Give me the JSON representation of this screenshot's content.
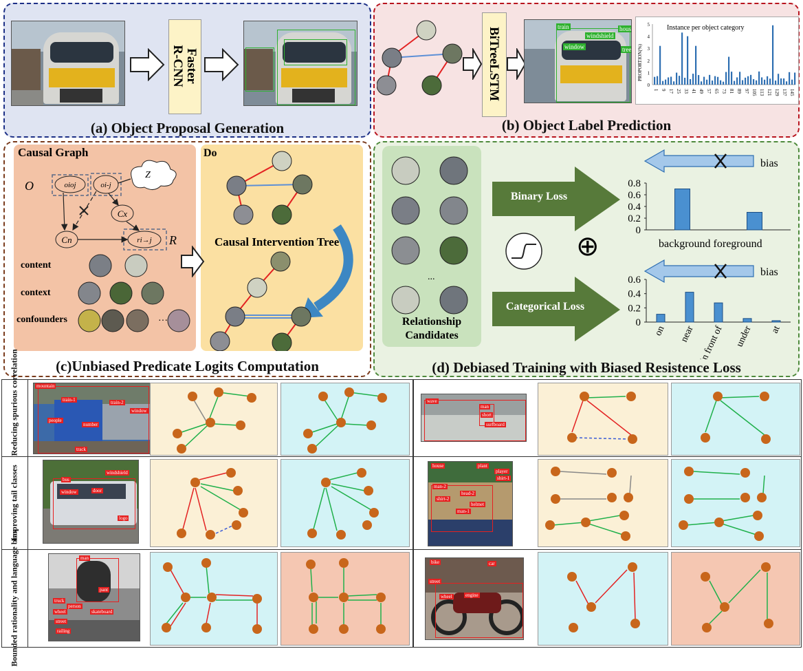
{
  "panel_a": {
    "caption": "(a) Object Proposal Generation",
    "box_label": "Faster R-CNN",
    "box_line1": "Faster",
    "box_line2": "R-CNN"
  },
  "panel_b": {
    "caption": "(b) Object Label Prediction",
    "box_label": "BiTreeLSTM",
    "det_labels": [
      "train",
      "windshield",
      "window",
      "house",
      "tree"
    ],
    "hist_title": "Instance per object category",
    "hist_ylabel": "PROPORTION(%)",
    "hist_yticks": [
      "0",
      "1",
      "2",
      "3",
      "4",
      "5"
    ],
    "hist_xticks": [
      "1",
      "9",
      "17",
      "25",
      "33",
      "41",
      "49",
      "57",
      "65",
      "73",
      "81",
      "89",
      "97",
      "105",
      "113",
      "121",
      "129",
      "137",
      "145"
    ]
  },
  "panel_c": {
    "caption": "(c)Unbiased Predicate Logits Computation",
    "graph_title": "Causal Graph",
    "do_label": "Do",
    "tree_label": "Causal Intervention Tree",
    "nodes": {
      "O": "O",
      "oioj": "oioj",
      "oij": "oi-j",
      "Z": "Z",
      "Cx": "Cx",
      "Cn": "Cn",
      "r": "ri→j",
      "R": "R"
    },
    "rows": [
      "content",
      "context",
      "confounders"
    ],
    "ellipsis": "···"
  },
  "panel_d": {
    "caption": "(d) Debiased Training with Biased Resistence Loss",
    "candidates_label_1": "Relationship",
    "candidates_label_2": "Candidates",
    "candidates_ellipsis": "...",
    "binary_loss": "Binary Loss",
    "categorical_loss": "Categorical Loss",
    "bias": "bias",
    "oplus": "⊕"
  },
  "chart_data": [
    {
      "type": "bar",
      "categories": [
        "background",
        "foreground"
      ],
      "values": [
        0.7,
        0.3
      ],
      "ylim": [
        0,
        0.8
      ],
      "yticks": [
        "0",
        "0.2",
        "0.4",
        "0.6",
        "0.8"
      ],
      "xlabel": "background foreground"
    },
    {
      "type": "bar",
      "categories": [
        "on",
        "near",
        "in front of",
        "under",
        "at"
      ],
      "values": [
        0.11,
        0.42,
        0.27,
        0.05,
        0.02
      ],
      "ylim": [
        0,
        0.6
      ],
      "yticks": [
        "0",
        "0.2",
        "0.4",
        "0.6"
      ]
    }
  ],
  "examples": {
    "row_labels": [
      "Reducing spurious correlation",
      "Improving tail classes",
      "Bounded rationality and language bias"
    ],
    "r1_photo1_labels": [
      "mountain",
      "train-1",
      "train-2",
      "people",
      "number",
      "window",
      "track"
    ],
    "r1_photo2_labels": [
      "wave",
      "man",
      "short",
      "surfboard"
    ],
    "r2_photo1_labels": [
      "bus",
      "window",
      "door",
      "windshield",
      "logo"
    ],
    "r2_photo2_labels": [
      "house",
      "plant",
      "player",
      "shirt-1",
      "man-2",
      "shirt-2",
      "man-1",
      "head-2",
      "helmet"
    ],
    "r3_photo1_labels": [
      "man",
      "pant",
      "truck",
      "person",
      "wheel",
      "street",
      "skateboard",
      "railing"
    ],
    "r3_photo2_labels": [
      "bike",
      "car",
      "street",
      "wheel",
      "engine"
    ]
  }
}
